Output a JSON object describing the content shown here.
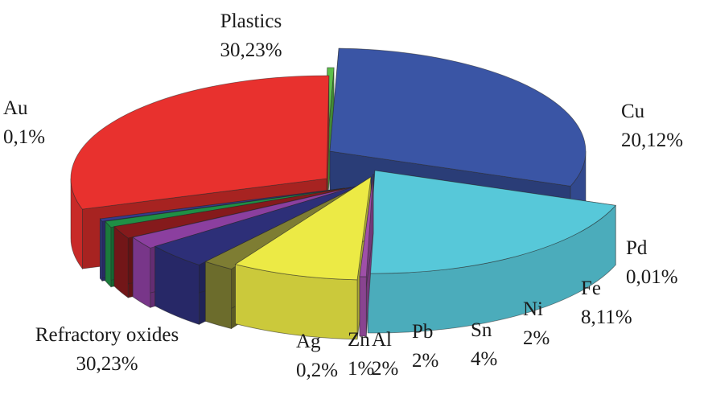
{
  "chart_data": {
    "type": "pie",
    "style": "3d-exploded",
    "legend": "none",
    "title": "",
    "slices": [
      {
        "name": "Plastics",
        "label": "30,23%",
        "value": 30.23,
        "color": "#3a55a5"
      },
      {
        "name": "Cu",
        "label": "20,12%",
        "value": 20.12,
        "color": "#57c8d9"
      },
      {
        "name": "Pd",
        "label": "0,01%",
        "value": 0.01,
        "color": "#9f4fa8"
      },
      {
        "name": "Fe",
        "label": "8,11%",
        "value": 8.11,
        "color": "#ecea45"
      },
      {
        "name": "Ni",
        "label": "2%",
        "value": 2,
        "color": "#7e7d33"
      },
      {
        "name": "Sn",
        "label": "4%",
        "value": 4,
        "color": "#2d2f78"
      },
      {
        "name": "Pb",
        "label": "2%",
        "value": 2,
        "color": "#8b3f9f"
      },
      {
        "name": "Al",
        "label": "2%",
        "value": 2,
        "color": "#851a1c"
      },
      {
        "name": "Zn",
        "label": "1%",
        "value": 1,
        "color": "#1f8f45"
      },
      {
        "name": "Ag",
        "label": "0,2%",
        "value": 0.2,
        "color": "#363b8f"
      },
      {
        "name": "Refractory oxides",
        "label": "30,23%",
        "value": 30.23,
        "color": "#e8312e"
      },
      {
        "name": "Au",
        "label": "0,1%",
        "value": 0.1,
        "color": "#5cbf4a"
      }
    ]
  }
}
